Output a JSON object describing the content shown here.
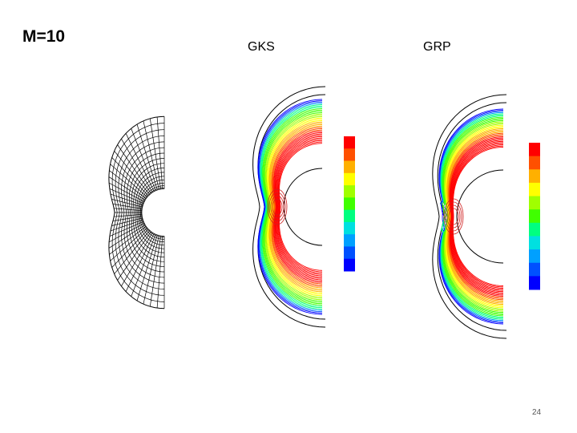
{
  "slide": {
    "title": "M=10",
    "labels": {
      "left": "GKS",
      "right": "GRP"
    },
    "page_number": "24"
  },
  "colormap": [
    "#0000ff",
    "#0050ff",
    "#00a0ff",
    "#00e0e0",
    "#00ff80",
    "#40ff00",
    "#a0ff00",
    "#ffff00",
    "#ffb000",
    "#ff5000",
    "#ff0000"
  ]
}
